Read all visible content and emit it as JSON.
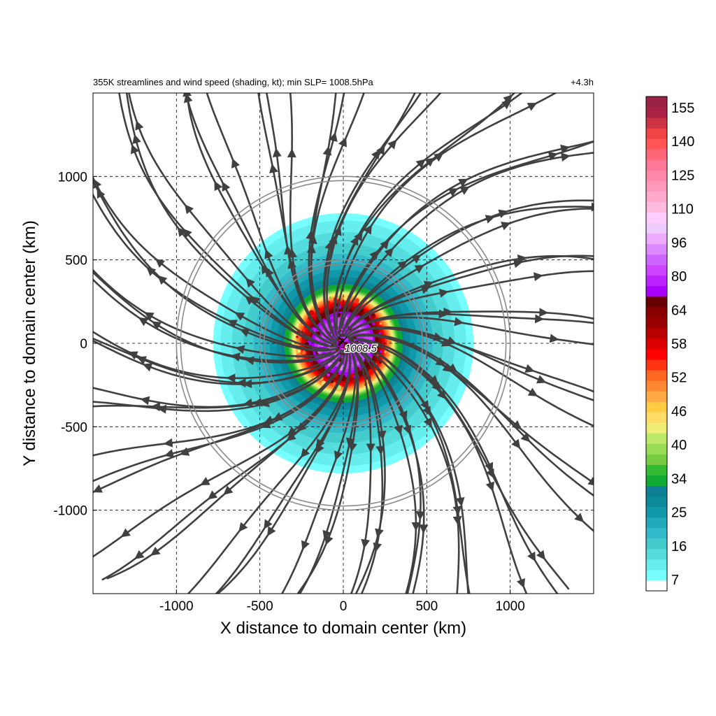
{
  "chart_data": {
    "type": "heatmap",
    "title": "355K streamlines and wind speed (shading, kt); min SLP= 1008.5hPa",
    "time_label": "+4.3h",
    "xlabel": "X distance to domain center (km)",
    "ylabel": "Y distance to domain center (km)",
    "xlim": [
      -1500,
      1500
    ],
    "ylim": [
      -1500,
      1500
    ],
    "x_ticks": [
      -1000,
      -500,
      0,
      500,
      1000
    ],
    "x_tick_labels": [
      "-1000",
      "-500",
      "0",
      "500",
      "1000"
    ],
    "y_ticks": [
      1000,
      500,
      0,
      -500,
      -1000
    ],
    "y_tick_labels": [
      "1000",
      "500",
      "0",
      "-500",
      "-1000"
    ],
    "grid": true,
    "grid_style": "dashed",
    "range_rings_km": [
      500,
      1000
    ],
    "center_label": "1008.5",
    "center_marker": "x-marker",
    "streamline_pattern": "outward-anticyclonic",
    "wind_speed_field": {
      "units": "kt",
      "outer_radius_km": 780,
      "radial_profile": [
        {
          "r_km": 0,
          "kt": 70
        },
        {
          "r_km": 150,
          "kt": 80
        },
        {
          "r_km": 210,
          "kt": 64
        },
        {
          "r_km": 250,
          "kt": 55
        },
        {
          "r_km": 290,
          "kt": 46
        },
        {
          "r_km": 330,
          "kt": 34
        },
        {
          "r_km": 400,
          "kt": 25
        },
        {
          "r_km": 550,
          "kt": 16
        },
        {
          "r_km": 780,
          "kt": 7
        }
      ]
    },
    "colorbar": {
      "tick_labels": [
        "155",
        "140",
        "125",
        "110",
        "96",
        "80",
        "64",
        "58",
        "52",
        "46",
        "40",
        "34",
        "25",
        "16",
        "7"
      ],
      "colors": [
        "#ffffff",
        "#77ffff",
        "#66eeee",
        "#55dddd",
        "#44cccc",
        "#33bbcc",
        "#22aabb",
        "#1199aa",
        "#0d8a99",
        "#0e7f95",
        "#11aa33",
        "#33bb33",
        "#77cc44",
        "#99dd55",
        "#bbe866",
        "#eeee77",
        "#ffdd66",
        "#ffcc44",
        "#ffaa44",
        "#ff8833",
        "#ff6622",
        "#ff3311",
        "#ff0000",
        "#dd0000",
        "#bb0000",
        "#990000",
        "#880000",
        "#660000",
        "#aa00ff",
        "#bb22ff",
        "#cc44ff",
        "#cc66ff",
        "#dd88ff",
        "#eeaaff",
        "#eeccff",
        "#ffccff",
        "#ffbbdd",
        "#ffaacc",
        "#ff99bb",
        "#ff88aa",
        "#ff7799",
        "#ff6677",
        "#ff5555",
        "#ee4444",
        "#cc3344",
        "#aa2244",
        "#992244"
      ]
    }
  }
}
